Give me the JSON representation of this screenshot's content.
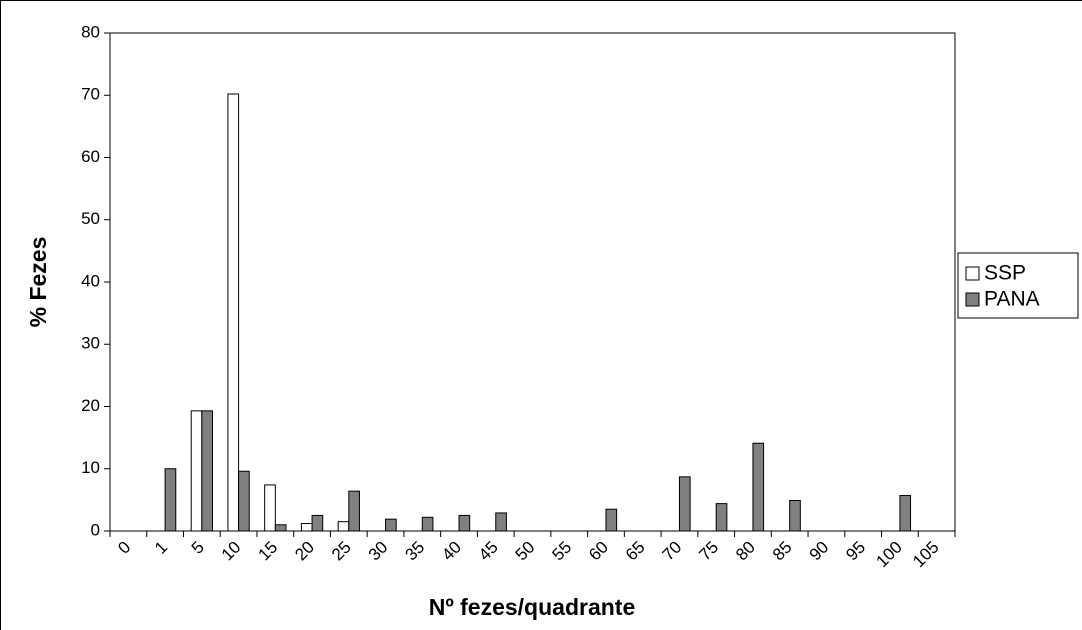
{
  "chart_data": {
    "type": "bar",
    "y_label": "% Fezes",
    "x_label": "Nº fezes/quadrante",
    "categories": [
      "0",
      "1",
      "5",
      "10",
      "15",
      "20",
      "25",
      "30",
      "35",
      "40",
      "45",
      "50",
      "55",
      "60",
      "65",
      "70",
      "75",
      "80",
      "85",
      "90",
      "95",
      "100",
      "105"
    ],
    "series": [
      {
        "name": "SSP",
        "color": "#ffffff",
        "values": [
          0,
          0,
          19.3,
          70.2,
          7.4,
          1.2,
          1.5,
          0,
          0,
          0,
          0,
          0,
          0,
          0,
          0,
          0,
          0,
          0,
          0,
          0,
          0,
          0,
          0
        ]
      },
      {
        "name": "PANA",
        "color": "#808080",
        "values": [
          0,
          10,
          19.3,
          9.6,
          1,
          2.5,
          6.4,
          1.9,
          2.2,
          2.5,
          2.9,
          0,
          0,
          3.5,
          0,
          8.7,
          4.4,
          14.1,
          4.9,
          0,
          0,
          5.7,
          0
        ]
      }
    ],
    "ylim": [
      0,
      80
    ],
    "yticks": [
      0,
      10,
      20,
      30,
      40,
      50,
      60,
      70,
      80
    ],
    "legend": "right"
  }
}
